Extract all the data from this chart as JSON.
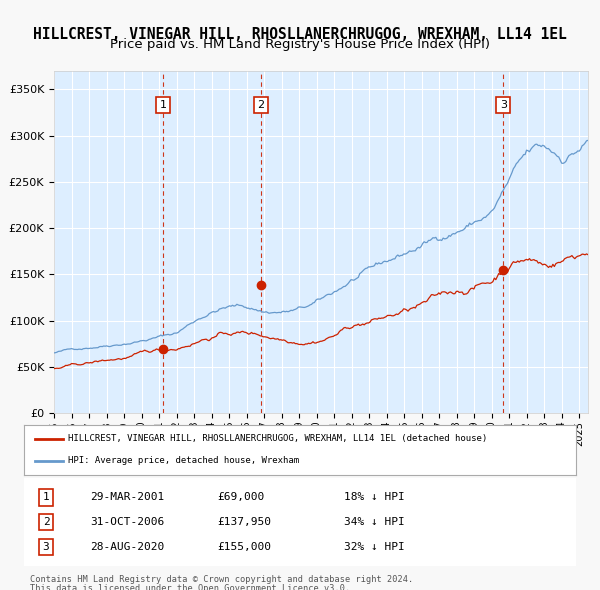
{
  "title": "HILLCREST, VINEGAR HILL, RHOSLLANERCHRUGOG, WREXHAM, LL14 1EL",
  "subtitle": "Price paid vs. HM Land Registry's House Price Index (HPI)",
  "title_fontsize": 10.5,
  "subtitle_fontsize": 9.5,
  "bg_color": "#ddeeff",
  "plot_bg_color": "#ddeeff",
  "grid_color": "#ffffff",
  "hpi_color": "#6699cc",
  "price_color": "#cc2200",
  "sale_marker_color": "#cc2200",
  "dashed_line_color": "#cc2200",
  "sale_events": [
    {
      "date_num": 2001.24,
      "price": 69000,
      "label": "1",
      "date_str": "29-MAR-2001"
    },
    {
      "date_num": 2006.83,
      "price": 137950,
      "label": "2",
      "date_str": "31-OCT-2006"
    },
    {
      "date_num": 2020.66,
      "price": 155000,
      "label": "3",
      "date_str": "28-AUG-2020"
    }
  ],
  "legend_price_label": "HILLCREST, VINEGAR HILL, RHOSLLANERCHRUGOG, WREXHAM, LL14 1EL (detached house)",
  "legend_hpi_label": "HPI: Average price, detached house, Wrexham",
  "table_rows": [
    [
      "1",
      "29-MAR-2001",
      "£69,000",
      "18% ↓ HPI"
    ],
    [
      "2",
      "31-OCT-2006",
      "£137,950",
      "34% ↓ HPI"
    ],
    [
      "3",
      "28-AUG-2020",
      "£155,000",
      "32% ↓ HPI"
    ]
  ],
  "footnote1": "Contains HM Land Registry data © Crown copyright and database right 2024.",
  "footnote2": "This data is licensed under the Open Government Licence v3.0.",
  "ylim": [
    0,
    370000
  ],
  "xlim_start": 1995.0,
  "xlim_end": 2025.5
}
